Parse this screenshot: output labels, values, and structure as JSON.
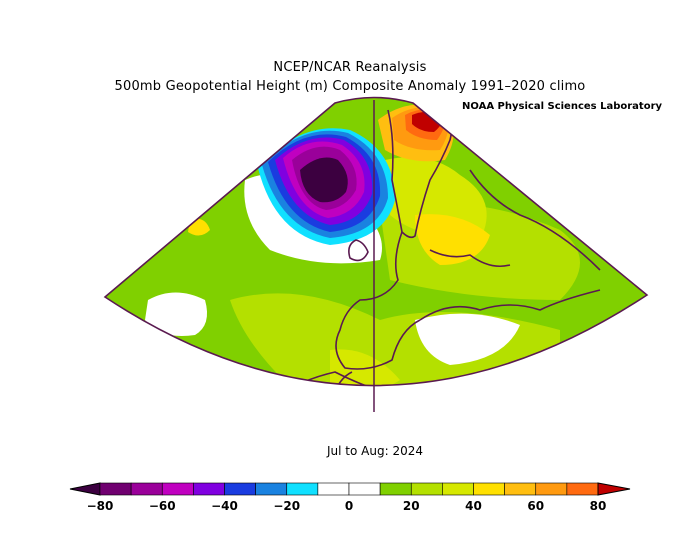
{
  "titles": {
    "line1": "NCEP/NCAR Reanalysis",
    "line2": "500mb Geopotential Height (m) Composite Anomaly 1991–2020 climo",
    "credit": "NOAA Physical Sciences Laboratory",
    "period": "Jul to Aug: 2024"
  },
  "colorbar": {
    "colors": [
      "#700070",
      "#9a009a",
      "#c000c0",
      "#8000e0",
      "#1a3ce0",
      "#1a82e0",
      "#10e0ff",
      "#ffffff",
      "#ffffff",
      "#80d000",
      "#b4e000",
      "#d6e800",
      "#ffe000",
      "#ffbe10",
      "#ff9a10",
      "#ff6a10"
    ],
    "low_color": "#3c0040",
    "high_color": "#c00000",
    "tick_labels": [
      "−80",
      "−60",
      "−40",
      "−20",
      "0",
      "20",
      "40",
      "60",
      "80"
    ]
  },
  "map_colors": {
    "outline": "#5a1a50",
    "low_core": "#3c0040",
    "high_core": "#c00000"
  }
}
